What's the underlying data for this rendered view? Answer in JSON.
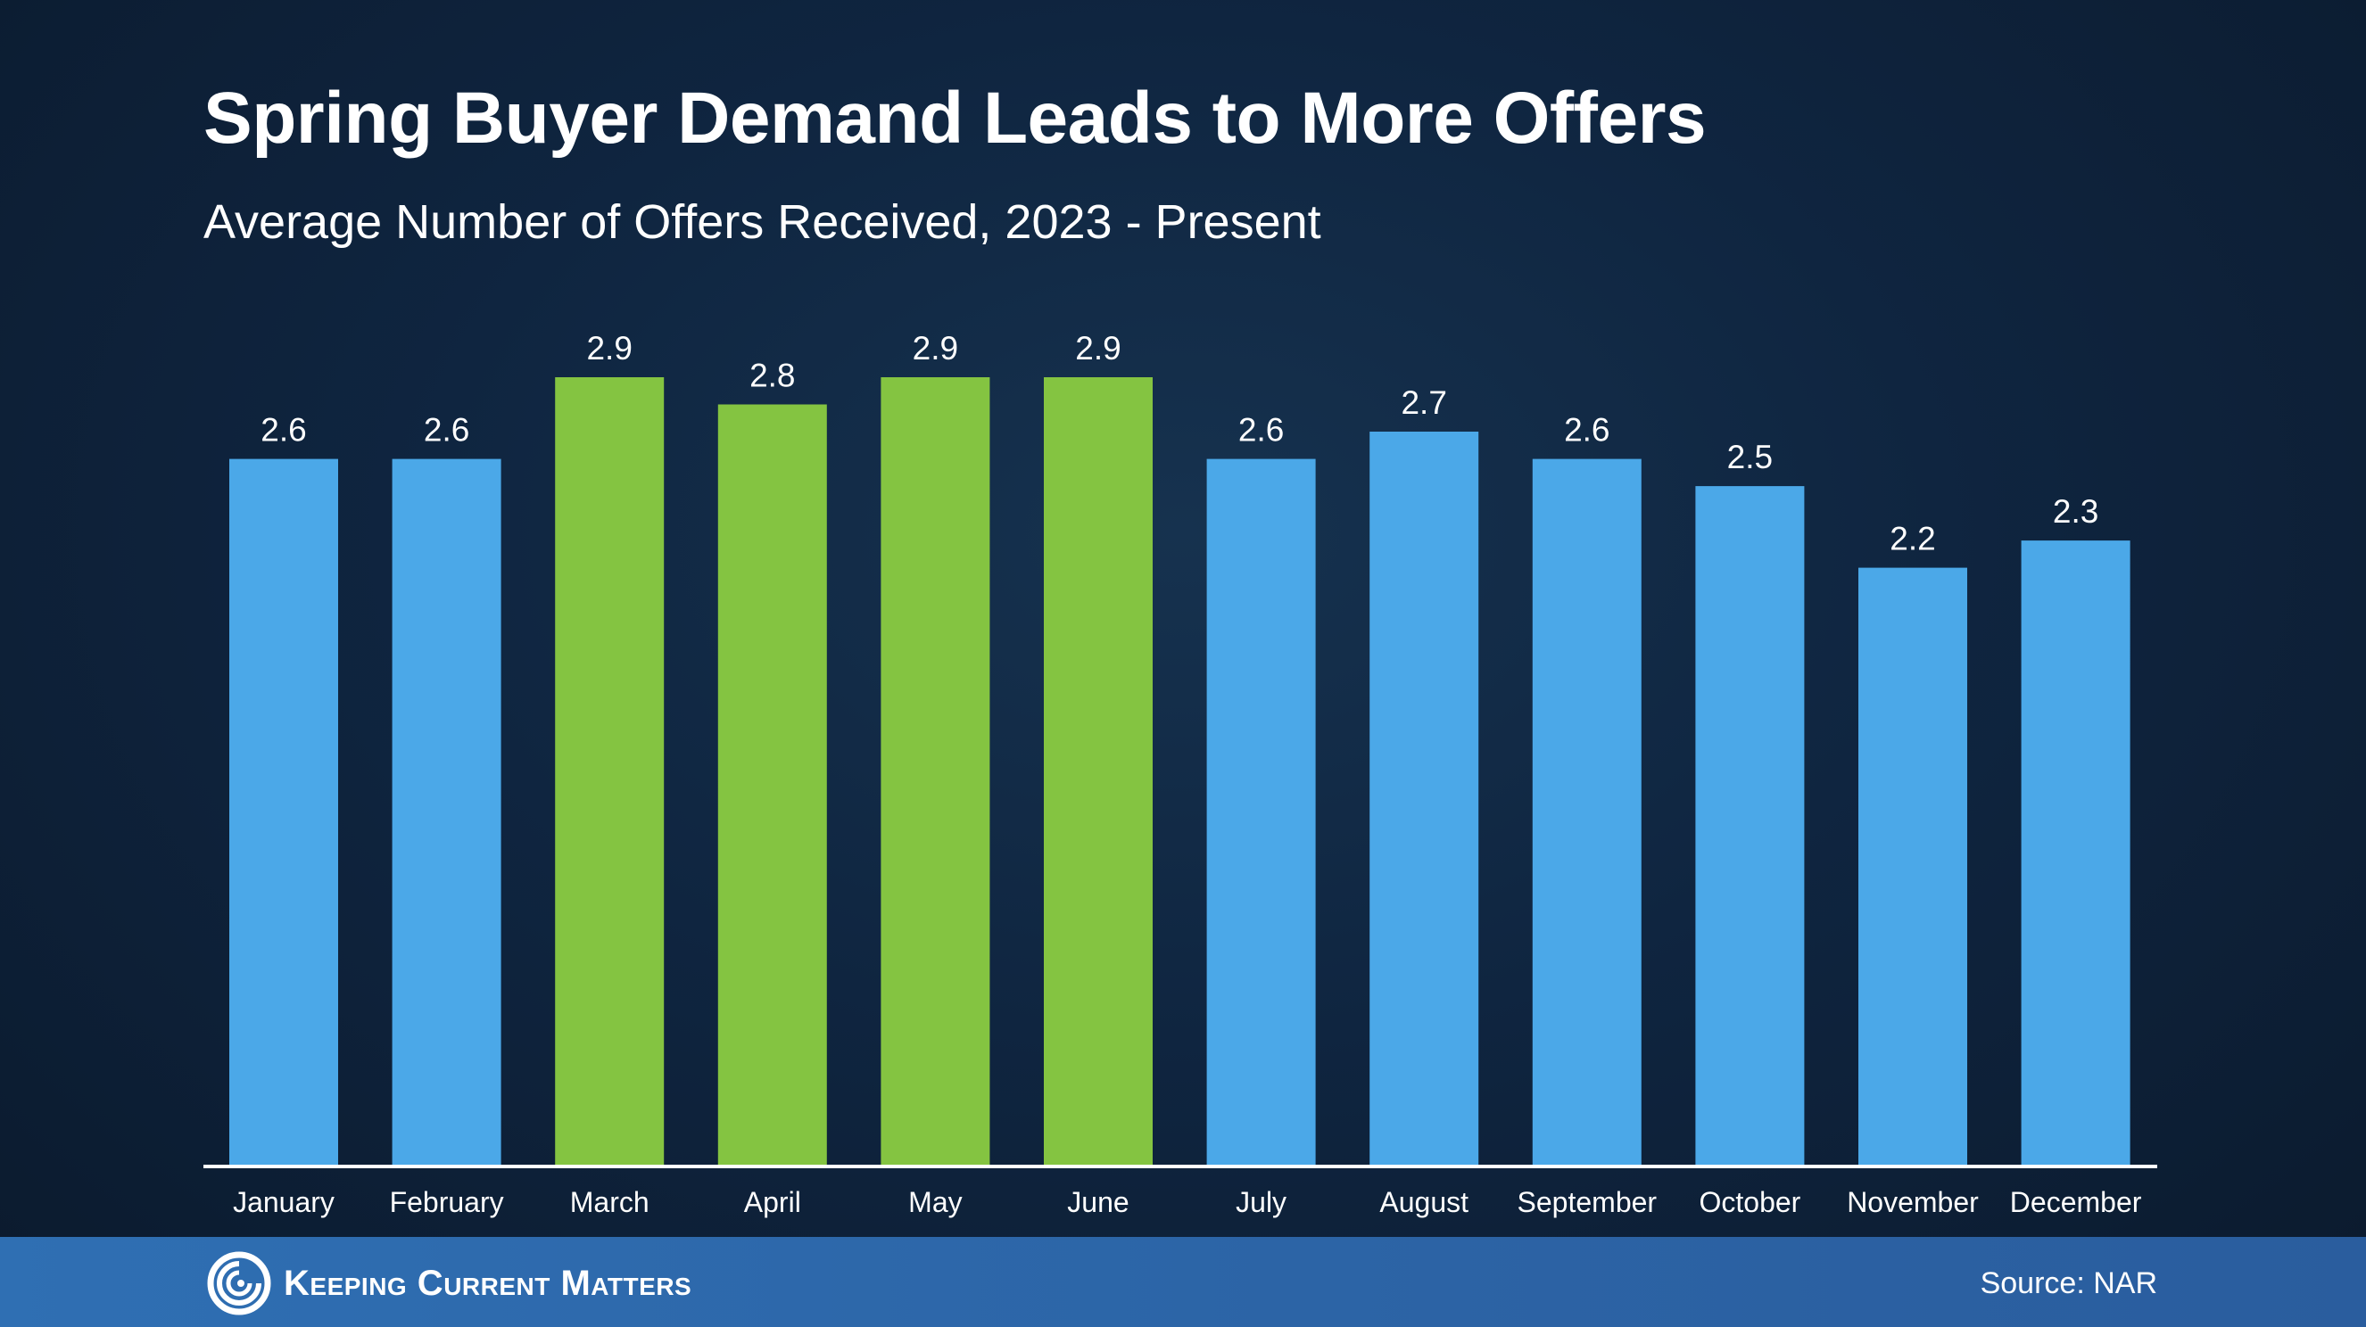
{
  "header": {
    "title": "Spring Buyer Demand Leads to More Offers",
    "subtitle": "Average Number of Offers Received, 2023 - Present"
  },
  "chart_data": {
    "type": "bar",
    "title": "Spring Buyer Demand Leads to More Offers",
    "subtitle": "Average Number of Offers Received, 2023 - Present",
    "categories": [
      "January",
      "February",
      "March",
      "April",
      "May",
      "June",
      "July",
      "August",
      "September",
      "October",
      "November",
      "December"
    ],
    "values": [
      2.6,
      2.6,
      2.9,
      2.8,
      2.9,
      2.9,
      2.6,
      2.7,
      2.6,
      2.5,
      2.2,
      2.3
    ],
    "data_labels": [
      "2.6",
      "2.6",
      "2.9",
      "2.8",
      "2.9",
      "2.9",
      "2.6",
      "2.7",
      "2.6",
      "2.5",
      "2.2",
      "2.3"
    ],
    "highlighted": [
      false,
      false,
      true,
      true,
      true,
      true,
      false,
      false,
      false,
      false,
      false,
      false
    ],
    "colors": {
      "default": "#4ba8e8",
      "highlight": "#84c441",
      "axis": "#ffffff",
      "label": "#ffffff"
    },
    "xlabel": "",
    "ylabel": "",
    "ylim": [
      0,
      2.9
    ],
    "grid": false,
    "legend": "none"
  },
  "footer": {
    "brand": "Keeping Current Matters",
    "logo_icon": "swirl-logo-icon",
    "source": "Source: NAR",
    "background_color": "#2f6fb3"
  }
}
